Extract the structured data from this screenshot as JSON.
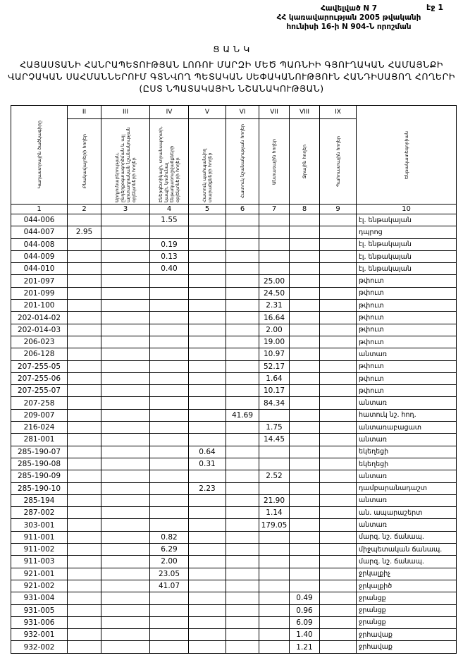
{
  "annex": {
    "line1": "Հավելված N 7",
    "line2": "ՀՀ կառավարության 2005 թվականի",
    "line3": "հունիսի 16-ի N 904-Ն որոշման"
  },
  "page_label": "էջ 1",
  "title": {
    "heading": "Ց Ա Ն Կ",
    "line1": "ՀԱՅԱՍՏԱՆԻ ՀԱՆՐԱՊԵՏՈՒԹՅԱՆ ԼՈՌՈՒ ՄԱՐԶԻ ՄԵԾ ՊԱՌՆԻԻ ԳՅՈՒՂԱԿԱՆ ՀԱՄԱՅՆՔԻ",
    "line2": "ՎԱՐՉԱԿԱՆ ՍԱՀՄԱՆՆԵՐՈՒՄ ԳՏՆՎՈՂ ՊԵՏԱԿԱՆ ՍԵՓԱԿԱՆՈՒԹՅՈՒՆ ՀԱՆԴԻՍԱՑՈՂ ՀՈՂԵՐԻ",
    "line3": "(ԸՍՏ ՆՊԱՏԱԿԱՅԻՆ ՆՇԱՆԱԿՈՒԹՅԱՆ)"
  },
  "table": {
    "columns": [
      {
        "roman": "",
        "label": "Կադաստրային ծածկագիրը",
        "num": "1"
      },
      {
        "roman": "II",
        "label": "Բնակավայրերի հողեր",
        "num": "2"
      },
      {
        "roman": "III",
        "label": "Արդյունաբերության, ընդերքօգտագործման և այլ արտադրական նշանակության օբյեկտների հողեր",
        "num": "3"
      },
      {
        "roman": "IV",
        "label": "Էներգետիկայի, տրանսպորտի, կապի, կոմունալ ենթակառուցվածքների օբյեկտների հողեր",
        "num": "4"
      },
      {
        "roman": "V",
        "label": "Հատուկ պահպանվող տարածքների հողեր",
        "num": "5"
      },
      {
        "roman": "VI",
        "label": "Հատուկ նշանակության հողեր",
        "num": "6"
      },
      {
        "roman": "VII",
        "label": "Անտառային հողեր",
        "num": "7"
      },
      {
        "roman": "VIII",
        "label": "Ջրային հողեր",
        "num": "8"
      },
      {
        "roman": "IX",
        "label": "Պահուստային հողեր",
        "num": "9"
      },
      {
        "roman": "",
        "label": "Ենթակատեգորիան",
        "num": "10"
      }
    ],
    "rows": [
      [
        "044-006",
        "",
        "",
        "1.55",
        "",
        "",
        "",
        "",
        "",
        "էլ. ենթակայան"
      ],
      [
        "044-007",
        "2.95",
        "",
        "",
        "",
        "",
        "",
        "",
        "",
        "դպրոց"
      ],
      [
        "044-008",
        "",
        "",
        "0.19",
        "",
        "",
        "",
        "",
        "",
        "էլ. ենթակայան"
      ],
      [
        "044-009",
        "",
        "",
        "0.13",
        "",
        "",
        "",
        "",
        "",
        "էլ. ենթակայան"
      ],
      [
        "044-010",
        "",
        "",
        "0.40",
        "",
        "",
        "",
        "",
        "",
        "էլ. ենթակայան"
      ],
      [
        "201-097",
        "",
        "",
        "",
        "",
        "",
        "25.00",
        "",
        "",
        "թփուտ"
      ],
      [
        "201-099",
        "",
        "",
        "",
        "",
        "",
        "24.50",
        "",
        "",
        "թփուտ"
      ],
      [
        "201-100",
        "",
        "",
        "",
        "",
        "",
        "2.31",
        "",
        "",
        "թփուտ"
      ],
      [
        "202-014-02",
        "",
        "",
        "",
        "",
        "",
        "16.64",
        "",
        "",
        "թփուտ"
      ],
      [
        "202-014-03",
        "",
        "",
        "",
        "",
        "",
        "2.00",
        "",
        "",
        "թփուտ"
      ],
      [
        "206-023",
        "",
        "",
        "",
        "",
        "",
        "19.00",
        "",
        "",
        "թփուտ"
      ],
      [
        "206-128",
        "",
        "",
        "",
        "",
        "",
        "10.97",
        "",
        "",
        "անտառ"
      ],
      [
        "207-255-05",
        "",
        "",
        "",
        "",
        "",
        "52.17",
        "",
        "",
        "թփուտ"
      ],
      [
        "207-255-06",
        "",
        "",
        "",
        "",
        "",
        "1.64",
        "",
        "",
        "թփուտ"
      ],
      [
        "207-255-07",
        "",
        "",
        "",
        "",
        "",
        "10.17",
        "",
        "",
        "թփուտ"
      ],
      [
        "207-258",
        "",
        "",
        "",
        "",
        "",
        "84.34",
        "",
        "",
        "անտառ"
      ],
      [
        "209-007",
        "",
        "",
        "",
        "",
        "41.69",
        "",
        "",
        "",
        "հատուկ նշ. հող."
      ],
      [
        "216-024",
        "",
        "",
        "",
        "",
        "",
        "1.75",
        "",
        "",
        "անտառաբացատ"
      ],
      [
        "281-001",
        "",
        "",
        "",
        "",
        "",
        "14.45",
        "",
        "",
        "անտառ"
      ],
      [
        "285-190-07",
        "",
        "",
        "",
        "0.64",
        "",
        "",
        "",
        "",
        "եկեղեցի"
      ],
      [
        "285-190-08",
        "",
        "",
        "",
        "0.31",
        "",
        "",
        "",
        "",
        "եկեղեցի"
      ],
      [
        "285-190-09",
        "",
        "",
        "",
        "",
        "",
        "2.52",
        "",
        "",
        "անտառ"
      ],
      [
        "285-190-10",
        "",
        "",
        "",
        "2.23",
        "",
        "",
        "",
        "",
        "դամբարանադաշտ"
      ],
      [
        "285-194",
        "",
        "",
        "",
        "",
        "",
        "21.90",
        "",
        "",
        "անտառ"
      ],
      [
        "287-002",
        "",
        "",
        "",
        "",
        "",
        "1.14",
        "",
        "",
        "ան. ապարաշերտ"
      ],
      [
        "303-001",
        "",
        "",
        "",
        "",
        "",
        "179.05",
        "",
        "",
        "անտառ"
      ],
      [
        "911-001",
        "",
        "",
        "0.82",
        "",
        "",
        "",
        "",
        "",
        "մարզ. նշ. ճանապ."
      ],
      [
        "911-002",
        "",
        "",
        "6.29",
        "",
        "",
        "",
        "",
        "",
        "միջպետական ճանապ."
      ],
      [
        "911-003",
        "",
        "",
        "2.00",
        "",
        "",
        "",
        "",
        "",
        "մարզ. նշ. ճանապ."
      ],
      [
        "921-001",
        "",
        "",
        "23.05",
        "",
        "",
        "",
        "",
        "",
        "ջրկալքիչ"
      ],
      [
        "921-002",
        "",
        "",
        "41.07",
        "",
        "",
        "",
        "",
        "",
        "ջրկալքիծ"
      ],
      [
        "931-004",
        "",
        "",
        "",
        "",
        "",
        "",
        "0.49",
        "",
        "ջրանցք"
      ],
      [
        "931-005",
        "",
        "",
        "",
        "",
        "",
        "",
        "0.96",
        "",
        "ջրանցք"
      ],
      [
        "931-006",
        "",
        "",
        "",
        "",
        "",
        "",
        "6.09",
        "",
        "ջրանցք"
      ],
      [
        "932-001",
        "",
        "",
        "",
        "",
        "",
        "",
        "1.40",
        "",
        "ջրհավաք"
      ],
      [
        "932-002",
        "",
        "",
        "",
        "",
        "",
        "",
        "1.21",
        "",
        "ջրհավաք"
      ]
    ]
  }
}
